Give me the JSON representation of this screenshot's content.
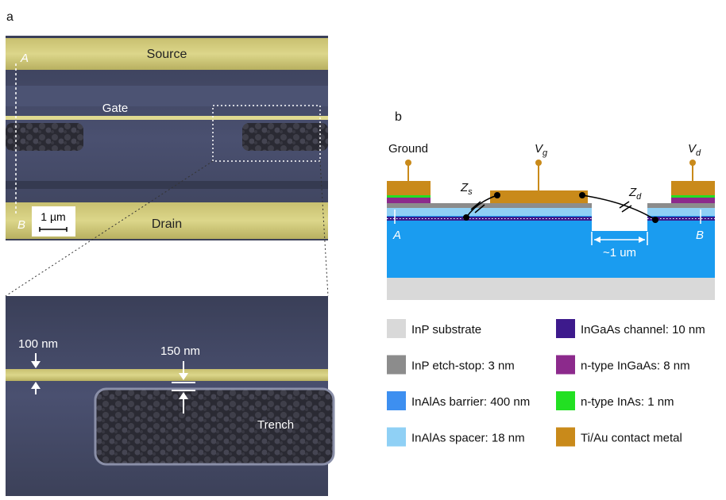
{
  "panel_a": {
    "label": "a",
    "sem_labels": {
      "source": "Source",
      "gate": "Gate",
      "drain": "Drain",
      "point_a": "A",
      "point_b": "B",
      "scale_bar": "1 µm"
    },
    "zoom_labels": {
      "gate_width": "100 nm",
      "gap": "150 nm",
      "trench": "Trench"
    }
  },
  "panel_b": {
    "label": "b",
    "terminals": {
      "ground": "Ground",
      "vg": {
        "symbol": "V",
        "subscript": "g"
      },
      "vd": {
        "symbol": "V",
        "subscript": "d"
      }
    },
    "impedances": {
      "zs": {
        "symbol": "Z",
        "subscript": "s"
      },
      "zd": {
        "symbol": "Z",
        "subscript": "d"
      }
    },
    "point_a": "A",
    "point_b": "B",
    "trench_width": "~1 um",
    "legend": [
      {
        "label": "InP substrate",
        "color": "#d9d9d9"
      },
      {
        "label": "InP etch-stop: 3 nm",
        "color": "#8c8c8c"
      },
      {
        "label": "InAlAs barrier: 400 nm",
        "color": "#3d8ff0"
      },
      {
        "label": "InAlAs spacer: 18 nm",
        "color": "#8fd0f5"
      },
      {
        "label": "InGaAs channel: 10 nm",
        "color": "#3d1a8c"
      },
      {
        "label": "n-type InGaAs: 8 nm",
        "color": "#8c2a8c"
      },
      {
        "label": "n-type InAs: 1 nm",
        "color": "#22e022"
      },
      {
        "label": "Ti/Au contact metal",
        "color": "#c98a1a"
      }
    ]
  }
}
